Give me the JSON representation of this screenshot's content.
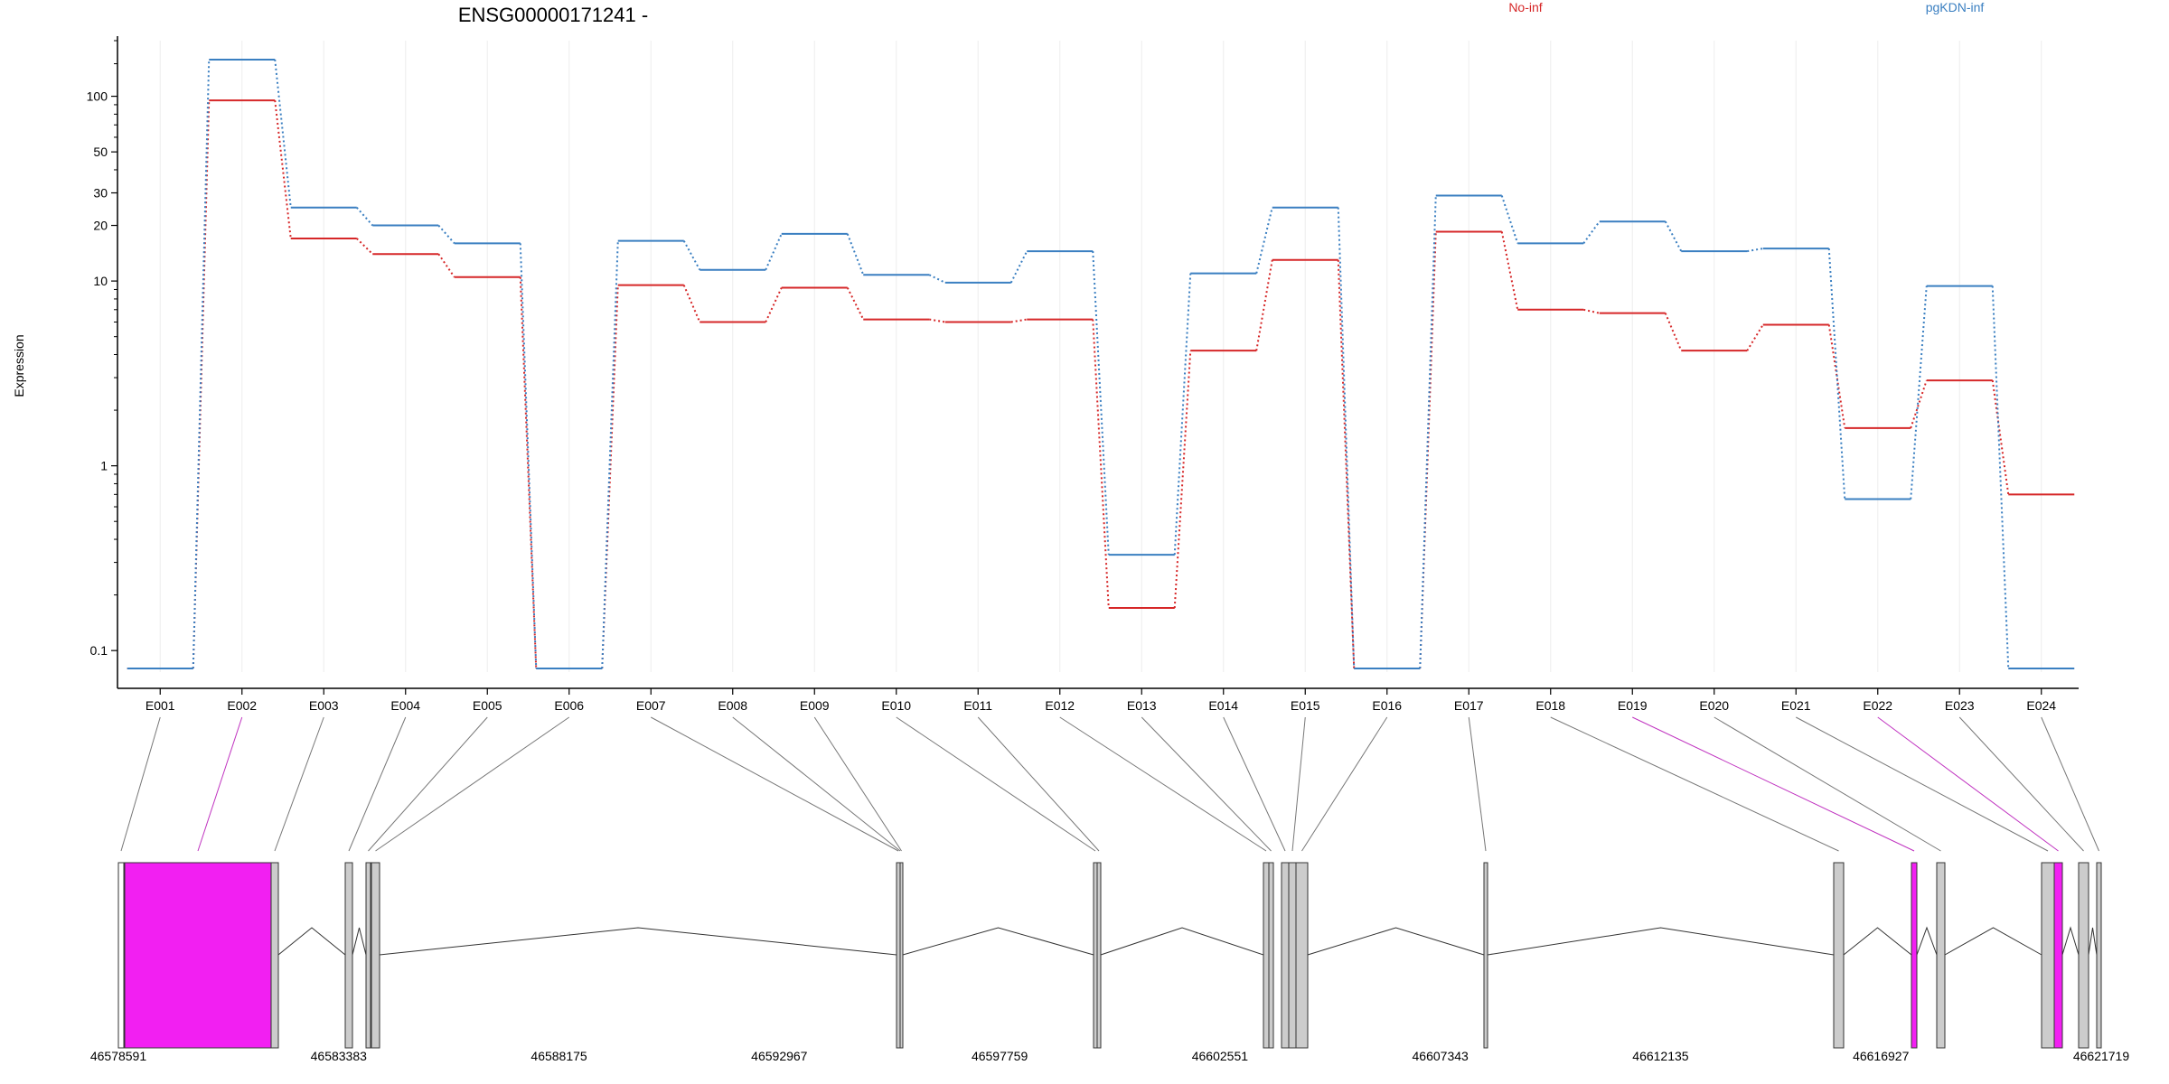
{
  "chart_data": {
    "type": "line",
    "title": "ENSG00000171241 -",
    "ylabel": "Expression",
    "xlabel": "",
    "y_scale": "log",
    "ylim": [
      0.08,
      200
    ],
    "y_ticks": [
      0.1,
      1,
      10,
      20,
      30,
      50,
      100
    ],
    "legend_position": "top",
    "grid": "vertical-light",
    "categories": [
      "E001",
      "E002",
      "E003",
      "E004",
      "E005",
      "E006",
      "E007",
      "E008",
      "E009",
      "E010",
      "E011",
      "E012",
      "E013",
      "E014",
      "E015",
      "E016",
      "E017",
      "E018",
      "E019",
      "E020",
      "E021",
      "E022",
      "E023",
      "E024"
    ],
    "series": [
      {
        "name": "No-inf",
        "color": "#d62728",
        "values": [
          0.08,
          95,
          17,
          14,
          10.5,
          0.08,
          9.5,
          6,
          9.2,
          6.2,
          6,
          6.2,
          0.17,
          4.2,
          13,
          0.08,
          18.5,
          7,
          6.7,
          4.2,
          5.8,
          1.6,
          2.9,
          0.7
        ]
      },
      {
        "name": "pgKDN-inf",
        "color": "#3a7fc1",
        "values": [
          0.08,
          158,
          25,
          20,
          16,
          0.08,
          16.5,
          11.5,
          18,
          10.8,
          9.8,
          14.5,
          0.33,
          11,
          25,
          0.08,
          29,
          16,
          21,
          14.5,
          15,
          0.66,
          9.4,
          0.08
        ]
      }
    ],
    "highlighted_exons": [
      "E002",
      "E019",
      "E022"
    ],
    "highlight_color": "#f21ff2",
    "genomic_axis": {
      "ticks": [
        "46578591",
        "46583383",
        "46588175",
        "46592967",
        "46597759",
        "46602551",
        "46607343",
        "46612135",
        "46616927",
        "46621719"
      ]
    }
  }
}
